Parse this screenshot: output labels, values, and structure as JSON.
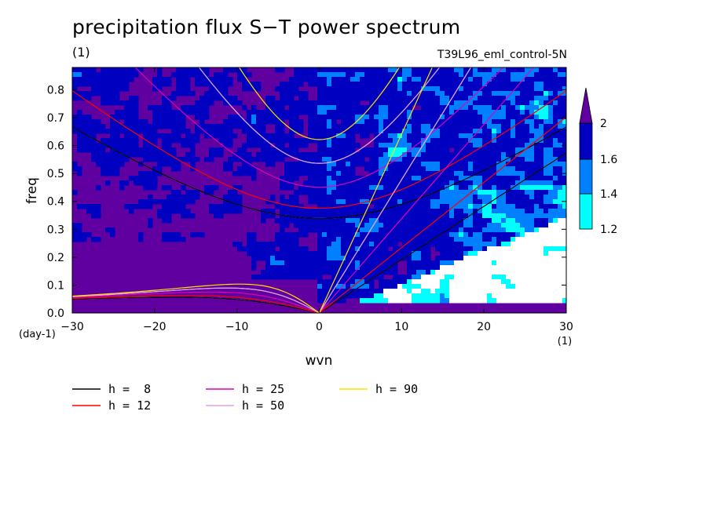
{
  "chart_data": {
    "type": "heatmap",
    "title": "precipitation flux S−T power spectrum",
    "subtitle_left": "(1)",
    "subtitle_right": "T39L96_eml_control-5N",
    "xlabel": "wvn",
    "ylabel": "freq",
    "x_unit": "(1)",
    "y_unit": "(day-1)",
    "xlim": [
      -30,
      30
    ],
    "ylim": [
      0,
      0.88
    ],
    "x_ticks": [
      -30,
      -20,
      -10,
      0,
      10,
      20,
      30
    ],
    "x_tick_labels": [
      "−30",
      "−20",
      "−10",
      "0",
      "10",
      "20",
      "30"
    ],
    "y_ticks": [
      0,
      0.1,
      0.2,
      0.3,
      0.4,
      0.5,
      0.6,
      0.7,
      0.8
    ],
    "y_tick_labels": [
      "0.0",
      "0.1",
      "0.2",
      "0.3",
      "0.4",
      "0.5",
      "0.6",
      "0.7",
      "0.8"
    ],
    "colorbar": {
      "levels": [
        1.2,
        1.4,
        1.6,
        2
      ],
      "level_labels": [
        "1.2",
        "1.4",
        "1.6",
        "2"
      ],
      "colors": [
        "#ffffff",
        "#00ffff",
        "#0080ff",
        "#0000c0",
        "#6000a0"
      ]
    },
    "dispersion_curves": [
      {
        "label": "h =  8",
        "h": 8,
        "color": "#000000"
      },
      {
        "label": "h = 12",
        "h": 12,
        "color": "#ff0000"
      },
      {
        "label": "h = 25",
        "h": 25,
        "color": "#e000b0"
      },
      {
        "label": "h = 50",
        "h": 50,
        "color": "#e0a0e0"
      },
      {
        "label": "h = 90",
        "h": 90,
        "color": "#ffe000"
      }
    ],
    "reference_curves": [
      {
        "h": 8,
        "color": "#ffffff"
      },
      {
        "h": 50,
        "color": "#ffffff"
      }
    ]
  }
}
